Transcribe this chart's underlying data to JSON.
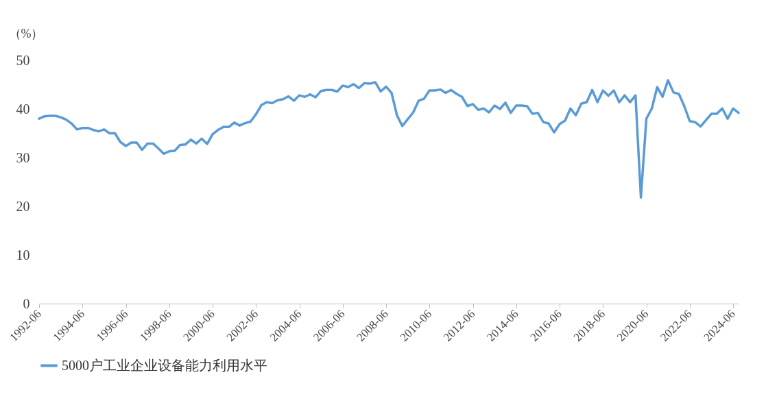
{
  "chart_data": {
    "type": "line",
    "ylabel": "（%）",
    "x": [
      "1992-06",
      "1992-09",
      "1992-12",
      "1993-03",
      "1993-06",
      "1993-09",
      "1993-12",
      "1994-03",
      "1994-06",
      "1994-09",
      "1994-12",
      "1995-03",
      "1995-06",
      "1995-09",
      "1995-12",
      "1996-03",
      "1996-06",
      "1996-09",
      "1996-12",
      "1997-03",
      "1997-06",
      "1997-09",
      "1997-12",
      "1998-03",
      "1998-06",
      "1998-09",
      "1998-12",
      "1999-03",
      "1999-06",
      "1999-09",
      "1999-12",
      "2000-03",
      "2000-06",
      "2000-09",
      "2000-12",
      "2001-03",
      "2001-06",
      "2001-09",
      "2001-12",
      "2002-03",
      "2002-06",
      "2002-09",
      "2002-12",
      "2003-03",
      "2003-06",
      "2003-09",
      "2003-12",
      "2004-03",
      "2004-06",
      "2004-09",
      "2004-12",
      "2005-03",
      "2005-06",
      "2005-09",
      "2005-12",
      "2006-03",
      "2006-06",
      "2006-09",
      "2006-12",
      "2007-03",
      "2007-06",
      "2007-09",
      "2007-12",
      "2008-03",
      "2008-06",
      "2008-09",
      "2008-12",
      "2009-03",
      "2009-06",
      "2009-09",
      "2009-12",
      "2010-03",
      "2010-06",
      "2010-09",
      "2010-12",
      "2011-03",
      "2011-06",
      "2011-09",
      "2011-12",
      "2012-03",
      "2012-06",
      "2012-09",
      "2012-12",
      "2013-03",
      "2013-06",
      "2013-09",
      "2013-12",
      "2014-03",
      "2014-06",
      "2014-09",
      "2014-12",
      "2015-03",
      "2015-06",
      "2015-09",
      "2015-12",
      "2016-03",
      "2016-06",
      "2016-09",
      "2016-12",
      "2017-03",
      "2017-06",
      "2017-09",
      "2017-12",
      "2018-03",
      "2018-06",
      "2018-09",
      "2018-12",
      "2019-03",
      "2019-06",
      "2019-09",
      "2019-12",
      "2020-03",
      "2020-06",
      "2020-09",
      "2020-12",
      "2021-03",
      "2021-06",
      "2021-09",
      "2021-12",
      "2022-03",
      "2022-06",
      "2022-09",
      "2022-12",
      "2023-03",
      "2023-06",
      "2023-09",
      "2023-12",
      "2024-03",
      "2024-06",
      "2024-09"
    ],
    "series": [
      {
        "name": "5000户工业企业设备能力利用水平",
        "color": "#5b9bd5",
        "values": [
          38.0,
          38.5,
          38.6,
          38.6,
          38.3,
          37.8,
          37.0,
          35.8,
          36.1,
          36.1,
          35.7,
          35.4,
          35.8,
          35.0,
          35.0,
          33.2,
          32.4,
          33.1,
          33.1,
          31.6,
          32.9,
          32.9,
          31.9,
          30.8,
          31.3,
          31.4,
          32.6,
          32.7,
          33.7,
          32.9,
          33.9,
          32.8,
          34.8,
          35.7,
          36.3,
          36.3,
          37.2,
          36.6,
          37.1,
          37.4,
          38.9,
          40.8,
          41.4,
          41.2,
          41.8,
          42.0,
          42.6,
          41.7,
          42.8,
          42.5,
          43.0,
          42.4,
          43.7,
          43.9,
          43.9,
          43.6,
          44.8,
          44.5,
          45.1,
          44.3,
          45.3,
          45.2,
          45.5,
          43.6,
          44.6,
          43.3,
          38.7,
          36.5,
          37.9,
          39.3,
          41.7,
          42.1,
          43.8,
          43.8,
          44.0,
          43.3,
          43.9,
          43.1,
          42.5,
          40.6,
          41.0,
          39.8,
          40.1,
          39.3,
          40.7,
          40.0,
          41.3,
          39.2,
          40.7,
          40.7,
          40.6,
          39.0,
          39.2,
          37.3,
          37.0,
          35.2,
          36.9,
          37.6,
          40.1,
          38.7,
          41.1,
          41.4,
          43.9,
          41.4,
          43.8,
          42.7,
          43.8,
          41.4,
          42.8,
          41.4,
          42.8,
          21.8,
          38.0,
          40.1,
          44.5,
          42.5,
          45.9,
          43.4,
          43.1,
          40.6,
          37.5,
          37.3,
          36.4,
          37.7,
          39.0,
          39.0,
          40.1,
          38.0,
          40.1,
          39.2
        ]
      }
    ],
    "xlim": [
      "1992-06",
      "2024-09"
    ],
    "xticks": [
      "1992-06",
      "1994-06",
      "1996-06",
      "1998-06",
      "2000-06",
      "2002-06",
      "2004-06",
      "2006-06",
      "2008-06",
      "2010-06",
      "2012-06",
      "2014-06",
      "2016-06",
      "2018-06",
      "2020-06",
      "2022-06",
      "2024-06"
    ],
    "ylim": [
      0,
      50
    ],
    "yticks": [
      0,
      10,
      20,
      30,
      40,
      50
    ],
    "grid": false,
    "legend": "bottom",
    "marker": "none",
    "line_style": "solid"
  }
}
